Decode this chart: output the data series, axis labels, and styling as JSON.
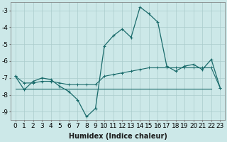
{
  "xlabel": "Humidex (Indice chaleur)",
  "background_color": "#cce8e8",
  "grid_color": "#aacccc",
  "line_color": "#1a6b6b",
  "xlim": [
    -0.5,
    23.5
  ],
  "ylim": [
    -9.5,
    -2.5
  ],
  "yticks": [
    -9,
    -8,
    -7,
    -6,
    -5,
    -4,
    -3
  ],
  "xticks": [
    0,
    1,
    2,
    3,
    4,
    5,
    6,
    7,
    8,
    9,
    10,
    11,
    12,
    13,
    14,
    15,
    16,
    17,
    18,
    19,
    20,
    21,
    22,
    23
  ],
  "series1_x": [
    0,
    1,
    2,
    3,
    4,
    5,
    6,
    7,
    8,
    9,
    10,
    11,
    12,
    13,
    14,
    15,
    16,
    17,
    18,
    19,
    20,
    21,
    22,
    23
  ],
  "series1_y": [
    -6.9,
    -7.7,
    -7.2,
    -7.0,
    -7.1,
    -7.5,
    -7.8,
    -8.3,
    -9.3,
    -8.8,
    -5.1,
    -4.5,
    -4.1,
    -4.6,
    -2.8,
    -3.2,
    -3.7,
    -6.3,
    -6.6,
    -6.3,
    -6.2,
    -6.5,
    -5.9,
    -7.6
  ],
  "series2_x": [
    0,
    1,
    2,
    3,
    4,
    5,
    6,
    7,
    8,
    9,
    10,
    11,
    12,
    13,
    14,
    15,
    16,
    17,
    18,
    19,
    20,
    21,
    22,
    23
  ],
  "series2_y": [
    -6.9,
    -7.3,
    -7.3,
    -7.2,
    -7.2,
    -7.3,
    -7.4,
    -7.4,
    -7.4,
    -7.4,
    -6.9,
    -6.8,
    -6.7,
    -6.6,
    -6.5,
    -6.4,
    -6.4,
    -6.4,
    -6.4,
    -6.4,
    -6.4,
    -6.4,
    -6.4,
    -7.6
  ],
  "series3_x": [
    0,
    22
  ],
  "series3_y": [
    -7.65,
    -7.65
  ],
  "font_size_xlabel": 7,
  "font_size_ticks": 6.5
}
